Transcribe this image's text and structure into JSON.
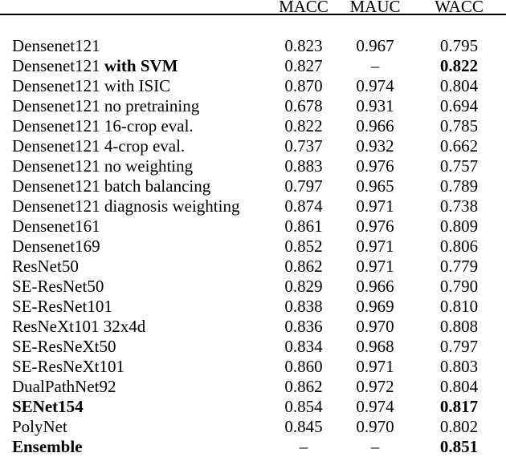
{
  "colors": {
    "background": "#ffffff",
    "text": "#000000",
    "rule": "#000000"
  },
  "table": {
    "label_column_header": "",
    "columns": [
      "MACC",
      "MAUC",
      "WACC"
    ],
    "missing_value_symbol": "–",
    "rows": [
      {
        "label": "Densenet121",
        "label_bold": "",
        "values": [
          "0.823",
          "0.967",
          "0.795"
        ],
        "bold_values": [
          false,
          false,
          false
        ]
      },
      {
        "label": "Densenet121",
        "label_bold": "with SVM",
        "values": [
          "0.827",
          "–",
          "0.822"
        ],
        "bold_values": [
          false,
          false,
          true
        ]
      },
      {
        "label": "Densenet121 with ISIC",
        "label_bold": "",
        "values": [
          "0.870",
          "0.974",
          "0.804"
        ],
        "bold_values": [
          false,
          false,
          false
        ]
      },
      {
        "label": "Densenet121 no pretraining",
        "label_bold": "",
        "values": [
          "0.678",
          "0.931",
          "0.694"
        ],
        "bold_values": [
          false,
          false,
          false
        ]
      },
      {
        "label": "Densenet121 16-crop eval.",
        "label_bold": "",
        "values": [
          "0.822",
          "0.966",
          "0.785"
        ],
        "bold_values": [
          false,
          false,
          false
        ]
      },
      {
        "label": "Densenet121 4-crop eval.",
        "label_bold": "",
        "values": [
          "0.737",
          "0.932",
          "0.662"
        ],
        "bold_values": [
          false,
          false,
          false
        ]
      },
      {
        "label": "Densenet121 no weighting",
        "label_bold": "",
        "values": [
          "0.883",
          "0.976",
          "0.757"
        ],
        "bold_values": [
          false,
          false,
          false
        ]
      },
      {
        "label": "Densenet121 batch balancing",
        "label_bold": "",
        "values": [
          "0.797",
          "0.965",
          "0.789"
        ],
        "bold_values": [
          false,
          false,
          false
        ]
      },
      {
        "label": "Densenet121 diagnosis weighting",
        "label_bold": "",
        "values": [
          "0.874",
          "0.971",
          "0.738"
        ],
        "bold_values": [
          false,
          false,
          false
        ]
      },
      {
        "label": "Densenet161",
        "label_bold": "",
        "values": [
          "0.861",
          "0.976",
          "0.809"
        ],
        "bold_values": [
          false,
          false,
          false
        ]
      },
      {
        "label": "Densenet169",
        "label_bold": "",
        "values": [
          "0.852",
          "0.971",
          "0.806"
        ],
        "bold_values": [
          false,
          false,
          false
        ]
      },
      {
        "label": "ResNet50",
        "label_bold": "",
        "values": [
          "0.862",
          "0.971",
          "0.779"
        ],
        "bold_values": [
          false,
          false,
          false
        ]
      },
      {
        "label": "SE-ResNet50",
        "label_bold": "",
        "values": [
          "0.829",
          "0.966",
          "0.790"
        ],
        "bold_values": [
          false,
          false,
          false
        ]
      },
      {
        "label": "SE-ResNet101",
        "label_bold": "",
        "values": [
          "0.838",
          "0.969",
          "0.810"
        ],
        "bold_values": [
          false,
          false,
          false
        ]
      },
      {
        "label": "ResNeXt101 32x4d",
        "label_bold": "",
        "values": [
          "0.836",
          "0.970",
          "0.808"
        ],
        "bold_values": [
          false,
          false,
          false
        ]
      },
      {
        "label": "SE-ResNeXt50",
        "label_bold": "",
        "values": [
          "0.834",
          "0.968",
          "0.797"
        ],
        "bold_values": [
          false,
          false,
          false
        ]
      },
      {
        "label": "SE-ResNeXt101",
        "label_bold": "",
        "values": [
          "0.860",
          "0.971",
          "0.803"
        ],
        "bold_values": [
          false,
          false,
          false
        ]
      },
      {
        "label": "DualPathNet92",
        "label_bold": "",
        "values": [
          "0.862",
          "0.972",
          "0.804"
        ],
        "bold_values": [
          false,
          false,
          false
        ]
      },
      {
        "label": "",
        "label_bold": "SENet154",
        "values": [
          "0.854",
          "0.974",
          "0.817"
        ],
        "bold_values": [
          false,
          false,
          true
        ]
      },
      {
        "label": "PolyNet",
        "label_bold": "",
        "values": [
          "0.845",
          "0.970",
          "0.802"
        ],
        "bold_values": [
          false,
          false,
          false
        ]
      },
      {
        "label": "",
        "label_bold": "Ensemble",
        "values": [
          "–",
          "–",
          "0.851"
        ],
        "bold_values": [
          false,
          false,
          true
        ]
      }
    ]
  }
}
